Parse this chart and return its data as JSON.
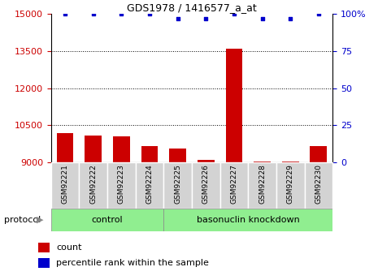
{
  "title": "GDS1978 / 1416577_a_at",
  "samples": [
    "GSM92221",
    "GSM92222",
    "GSM92223",
    "GSM92224",
    "GSM92225",
    "GSM92226",
    "GSM92227",
    "GSM92228",
    "GSM92229",
    "GSM92230"
  ],
  "count_values": [
    10200,
    10100,
    10050,
    9650,
    9550,
    9100,
    13600,
    9050,
    9050,
    9650
  ],
  "percentile_values": [
    100,
    100,
    100,
    100,
    97,
    97,
    100,
    97,
    97,
    100
  ],
  "ylim_left": [
    9000,
    15000
  ],
  "ylim_right": [
    0,
    100
  ],
  "yticks_left": [
    9000,
    10500,
    12000,
    13500,
    15000
  ],
  "yticks_right": [
    0,
    25,
    50,
    75,
    100
  ],
  "control_indices": [
    0,
    1,
    2,
    3
  ],
  "knockdown_indices": [
    4,
    5,
    6,
    7,
    8,
    9
  ],
  "control_label": "control",
  "knockdown_label": "basonuclin knockdown",
  "protocol_label": "protocol",
  "legend_count": "count",
  "legend_percentile": "percentile rank within the sample",
  "bar_color": "#cc0000",
  "dot_color": "#0000cc",
  "bar_width": 0.6,
  "group_bg_color": "#90ee90",
  "tick_label_color_left": "#cc0000",
  "tick_label_color_right": "#0000cc",
  "grid_dotted_at": [
    10500,
    12000,
    13500
  ],
  "sample_box_color": "#d3d3d3"
}
